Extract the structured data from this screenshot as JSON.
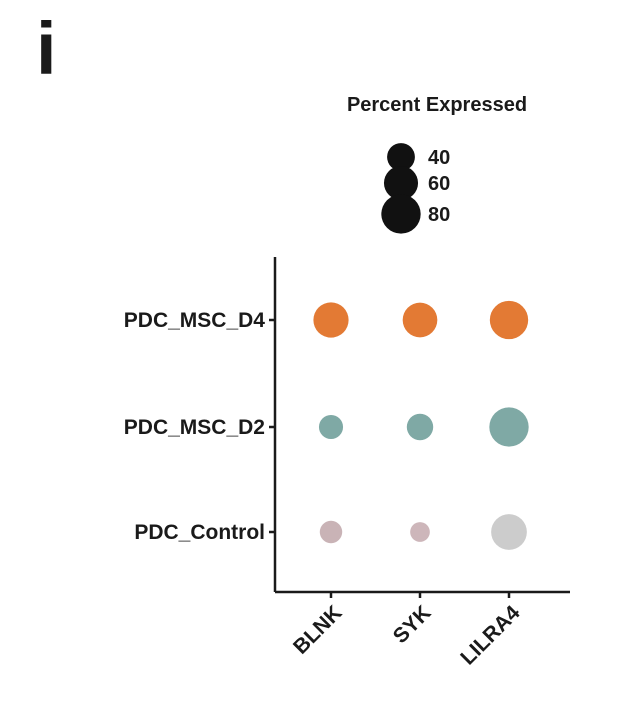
{
  "panel_letter": "i",
  "chart_data": {
    "type": "dotplot",
    "title": "",
    "xlabel": "",
    "ylabel": "",
    "categories": [
      "BLNK",
      "SYK",
      "LILRA4"
    ],
    "groups": [
      "PDC_MSC_D4",
      "PDC_MSC_D2",
      "PDC_Control"
    ],
    "series": [
      {
        "name": "PDC_MSC_D4",
        "color": "#e37a34",
        "percent_expressed": [
          64,
          62,
          76
        ]
      },
      {
        "name": "PDC_MSC_D2",
        "color": "#7fa9a5",
        "percent_expressed": [
          30,
          36,
          80
        ]
      },
      {
        "name": "PDC_Control",
        "color": "#c9c2c2",
        "dot_colors": [
          "#c9b3b6",
          "#cdb6ba",
          "#cccccc"
        ],
        "percent_expressed": [
          26,
          20,
          66
        ]
      }
    ],
    "legend": {
      "title": "Percent Expressed",
      "placement": "top",
      "items": [
        {
          "label": "40",
          "value": 40
        },
        {
          "label": "60",
          "value": 60
        },
        {
          "label": "80",
          "value": 80
        }
      ]
    },
    "grid": false
  }
}
